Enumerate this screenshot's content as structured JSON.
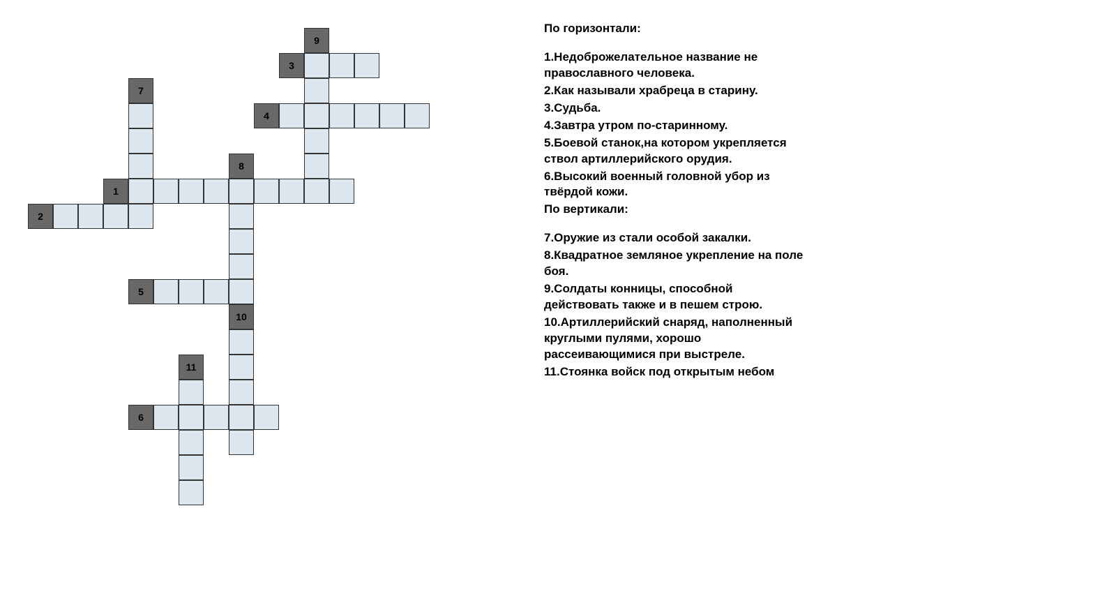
{
  "crossword": {
    "cell_size": 36,
    "empty_color": "#dce6ef",
    "num_bg_color": "#686868",
    "border_color": "#333333",
    "cells": [
      {
        "r": 1,
        "c": 12,
        "num": "9"
      },
      {
        "r": 2,
        "c": 11,
        "num": "3"
      },
      {
        "r": 2,
        "c": 12
      },
      {
        "r": 2,
        "c": 13
      },
      {
        "r": 2,
        "c": 14
      },
      {
        "r": 3,
        "c": 5,
        "num": "7"
      },
      {
        "r": 3,
        "c": 12
      },
      {
        "r": 4,
        "c": 5
      },
      {
        "r": 4,
        "c": 10,
        "num": "4"
      },
      {
        "r": 4,
        "c": 11
      },
      {
        "r": 4,
        "c": 12
      },
      {
        "r": 4,
        "c": 13
      },
      {
        "r": 4,
        "c": 14
      },
      {
        "r": 4,
        "c": 15
      },
      {
        "r": 4,
        "c": 16
      },
      {
        "r": 5,
        "c": 5
      },
      {
        "r": 5,
        "c": 12
      },
      {
        "r": 6,
        "c": 5
      },
      {
        "r": 6,
        "c": 9,
        "num": "8"
      },
      {
        "r": 6,
        "c": 12
      },
      {
        "r": 7,
        "c": 4,
        "num": "1"
      },
      {
        "r": 7,
        "c": 5
      },
      {
        "r": 7,
        "c": 6
      },
      {
        "r": 7,
        "c": 7
      },
      {
        "r": 7,
        "c": 8
      },
      {
        "r": 7,
        "c": 9
      },
      {
        "r": 7,
        "c": 10
      },
      {
        "r": 7,
        "c": 11
      },
      {
        "r": 7,
        "c": 12
      },
      {
        "r": 7,
        "c": 13
      },
      {
        "r": 8,
        "c": 1,
        "num": "2"
      },
      {
        "r": 8,
        "c": 2
      },
      {
        "r": 8,
        "c": 3
      },
      {
        "r": 8,
        "c": 4
      },
      {
        "r": 8,
        "c": 5
      },
      {
        "r": 8,
        "c": 9
      },
      {
        "r": 9,
        "c": 9
      },
      {
        "r": 10,
        "c": 9
      },
      {
        "r": 11,
        "c": 5,
        "num": "5"
      },
      {
        "r": 11,
        "c": 6
      },
      {
        "r": 11,
        "c": 7
      },
      {
        "r": 11,
        "c": 8
      },
      {
        "r": 11,
        "c": 9
      },
      {
        "r": 12,
        "c": 9,
        "num": "10"
      },
      {
        "r": 13,
        "c": 9
      },
      {
        "r": 14,
        "c": 7,
        "num": "11"
      },
      {
        "r": 14,
        "c": 9
      },
      {
        "r": 15,
        "c": 7
      },
      {
        "r": 15,
        "c": 9
      },
      {
        "r": 16,
        "c": 5,
        "num": "6"
      },
      {
        "r": 16,
        "c": 6
      },
      {
        "r": 16,
        "c": 7
      },
      {
        "r": 16,
        "c": 8
      },
      {
        "r": 16,
        "c": 9
      },
      {
        "r": 16,
        "c": 10
      },
      {
        "r": 17,
        "c": 7
      },
      {
        "r": 17,
        "c": 9
      },
      {
        "r": 18,
        "c": 7
      },
      {
        "r": 19,
        "c": 7
      }
    ]
  },
  "clues": {
    "across_title": "По горизонтали:",
    "across": [
      "1.Недоброжелательное название не   православного человека.",
      "2.Как называли храбреца в старину.",
      "3.Судьба.",
      "4.Завтра утром по-старинному.",
      "5.Боевой станок,на котором укрепляется ствол артиллерийского орудия.",
      "6.Высокий военный головной убор из твёрдой кожи."
    ],
    "down_title": "По вертикали:",
    "down": [
      "7.Оружие из  стали особой закалки.",
      "8.Квадратное земляное укрепление на поле боя.",
      "9.Солдаты  конницы, способной действовать также и в пешем строю.",
      "10.Артиллерийский снаряд, наполненный круглыми пулями, хорошо рассеивающимися при выстреле.",
      "11.Стоянка войск под открытым небом"
    ]
  }
}
